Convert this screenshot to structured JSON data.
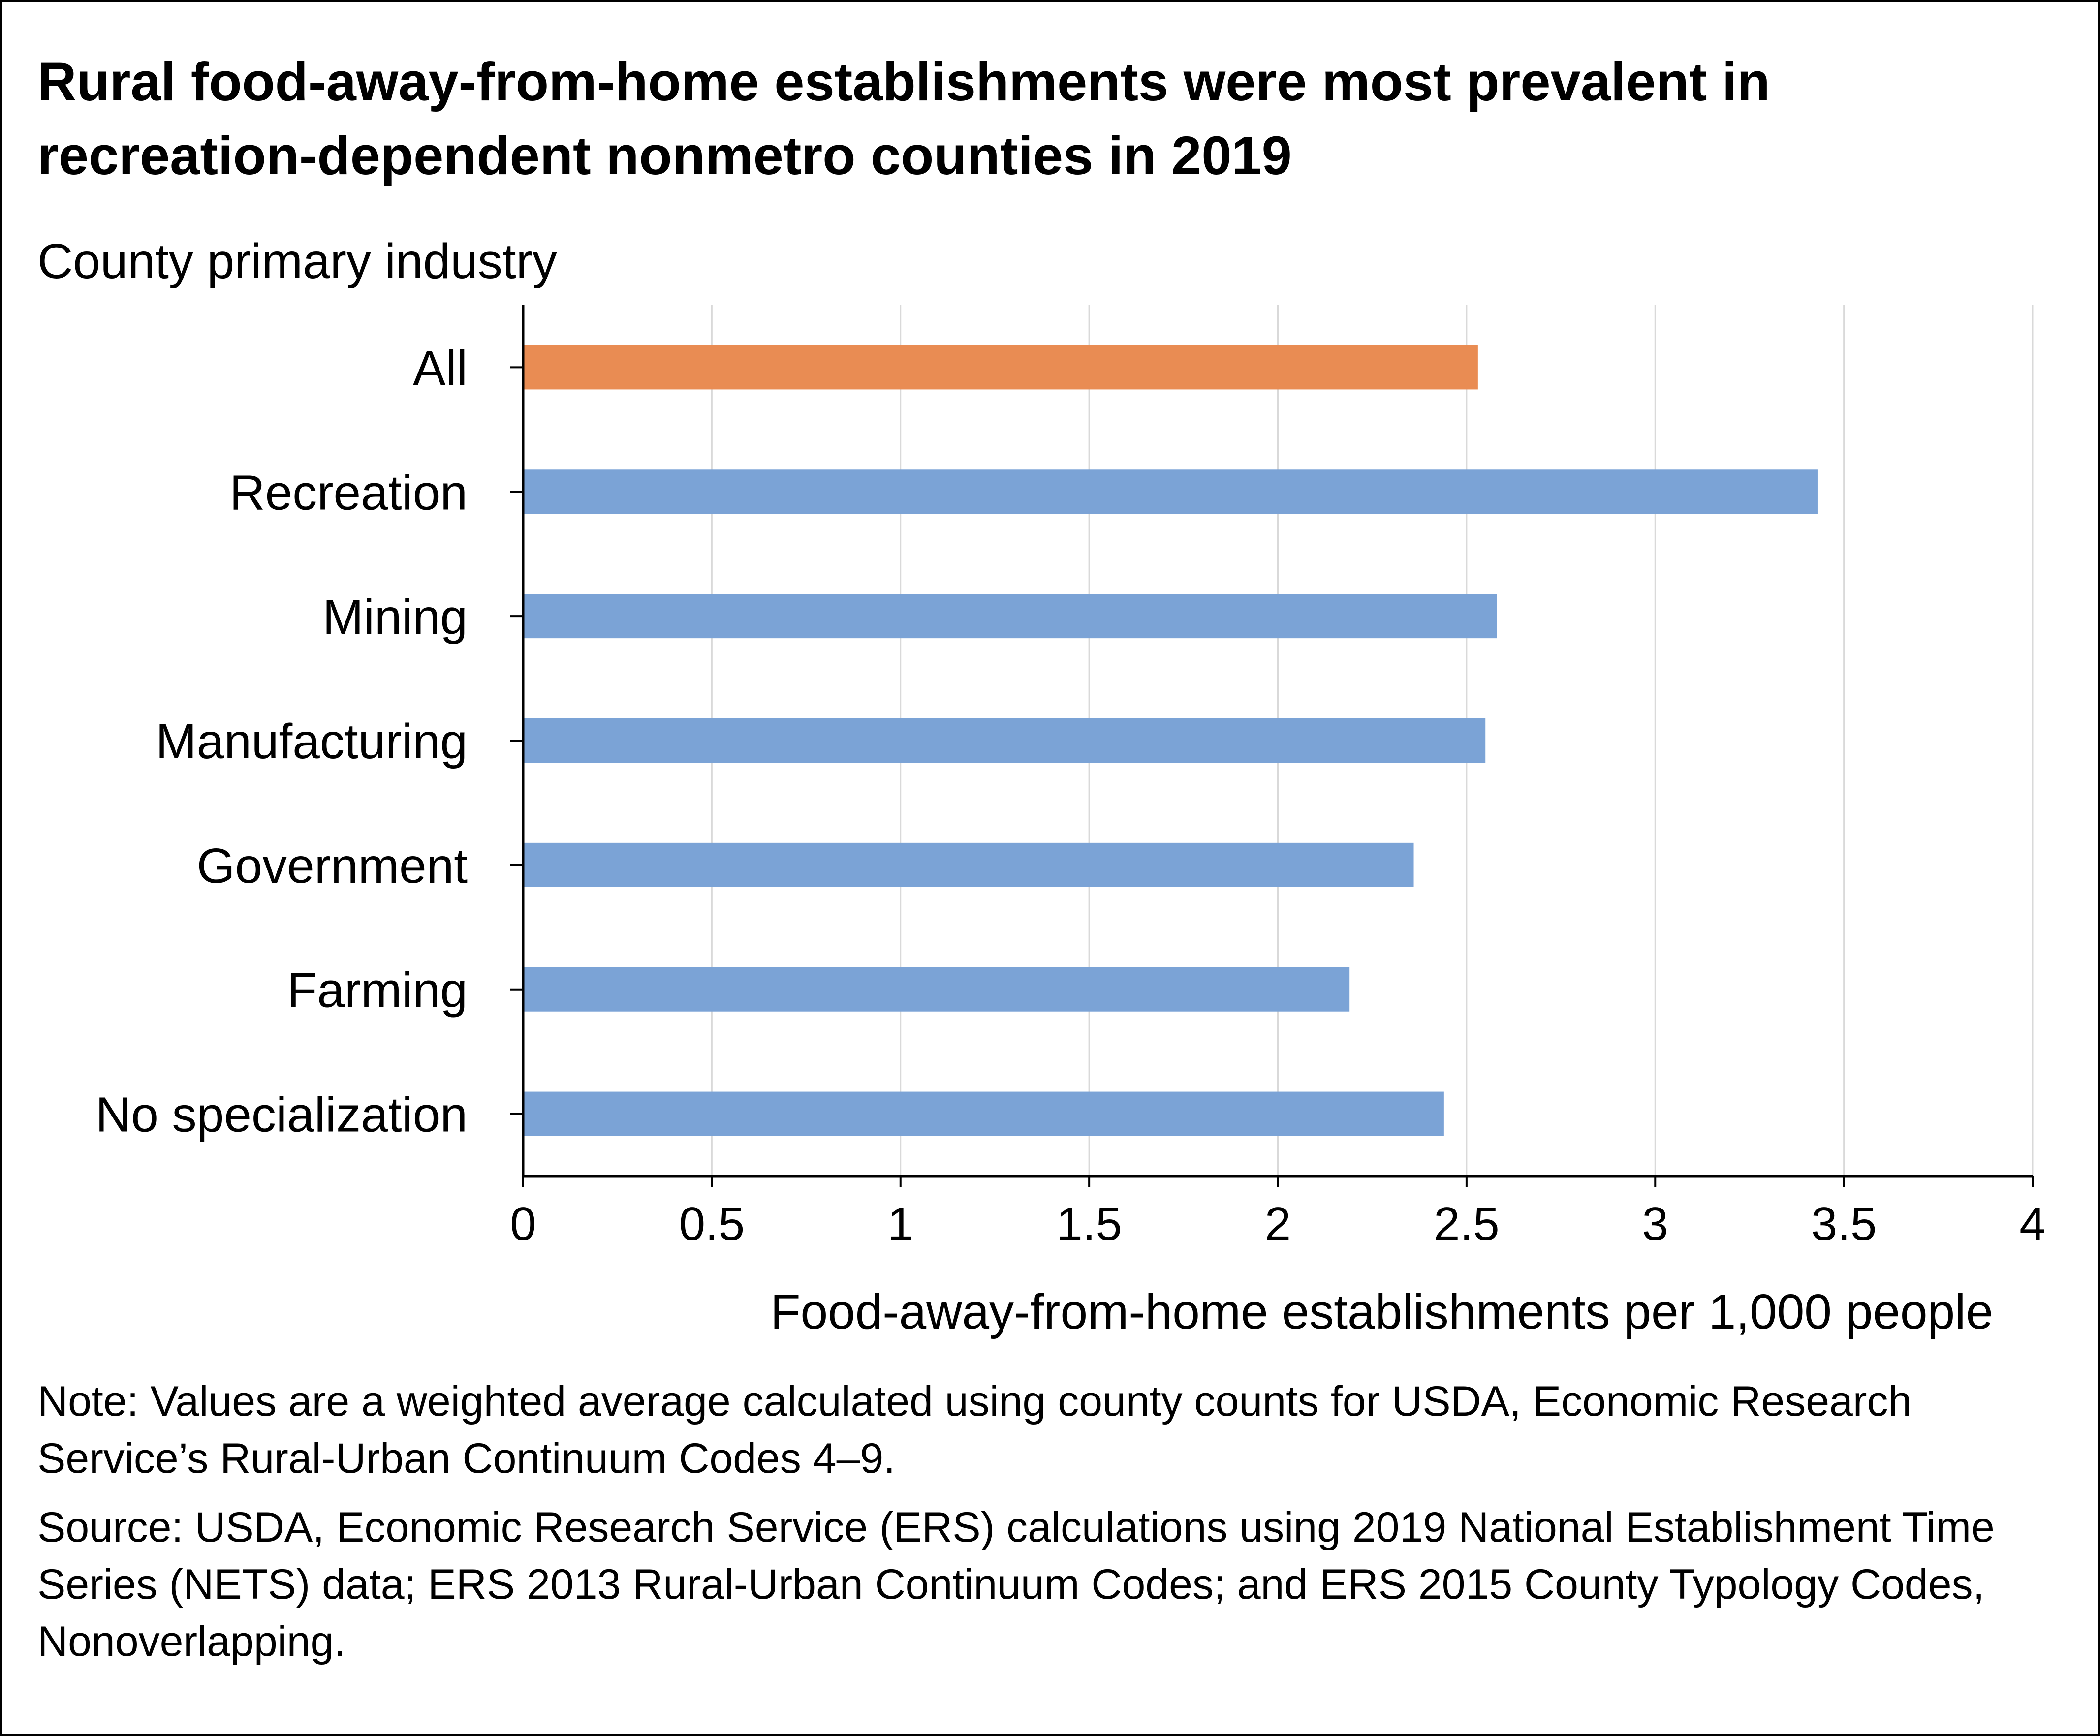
{
  "title": "Rural food-away-from-home establishments were most prevalent in recreation-dependent nonmetro counties in 2019",
  "note": "Note: Values are a weighted average calculated using county counts for USDA, Economic Research Service’s Rural-Urban Continuum Codes 4–9.",
  "source": "Source: USDA, Economic Research Service (ERS) calculations using 2019 National Establishment Time Series (NETS) data; ERS 2013 Rural-Urban Continuum Codes; and ERS 2015 County Typology Codes, Nonoverlapping.",
  "colors": {
    "highlight": "#E98C53",
    "bar": "#7BA3D6",
    "grid": "#D9D9D9",
    "axis": "#000000"
  },
  "chart_data": {
    "type": "bar",
    "orientation": "horizontal",
    "ylabel": "County primary industry",
    "xlabel": "Food-away-from-home establishments per 1,000 people",
    "categories": [
      "All",
      "Recreation",
      "Mining",
      "Manufacturing",
      "Government",
      "Farming",
      "No specialization"
    ],
    "values": [
      2.53,
      3.43,
      2.58,
      2.55,
      2.36,
      2.19,
      2.44
    ],
    "highlight_category": "All",
    "xlim": [
      0,
      4
    ],
    "xticks": [
      "0",
      "0.5",
      "1",
      "1.5",
      "2",
      "2.5",
      "3",
      "3.5",
      "4"
    ],
    "grid": "vertical"
  }
}
